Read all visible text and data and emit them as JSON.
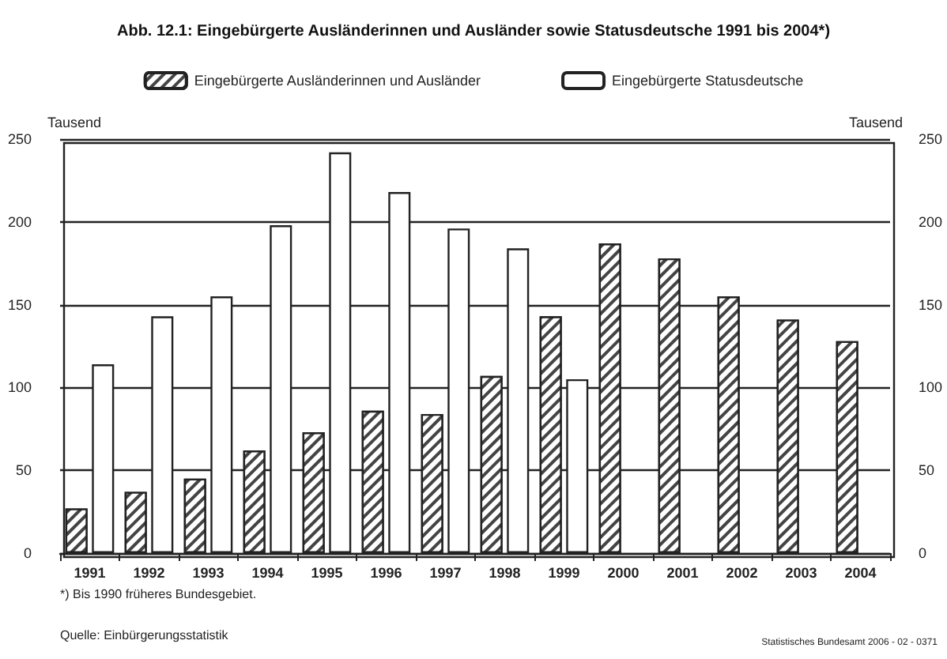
{
  "chart_data": {
    "type": "bar",
    "title": "Abb. 12.1: Eingebürgerte Ausländerinnen und Ausländer sowie Statusdeutsche 1991 bis 2004*)",
    "categories": [
      "1991",
      "1992",
      "1993",
      "1994",
      "1995",
      "1996",
      "1997",
      "1998",
      "1999",
      "2000",
      "2001",
      "2002",
      "2003",
      "2004"
    ],
    "series": [
      {
        "name": "Eingebürgerte Ausländerinnen und Ausländer",
        "color": "#444444",
        "values": [
          27,
          37,
          45,
          62,
          73,
          86,
          84,
          107,
          143,
          187,
          178,
          155,
          141,
          128
        ]
      },
      {
        "name": "Eingebürgerte Statusdeutsche",
        "color": "#ffffff",
        "values": [
          114,
          143,
          155,
          198,
          242,
          218,
          196,
          184,
          105,
          null,
          null,
          null,
          null,
          null
        ]
      }
    ],
    "ylabel": "Tausend",
    "y2label": "Tausend",
    "ylim": [
      0,
      250
    ],
    "yticks": [
      0,
      50,
      100,
      150,
      200,
      250
    ],
    "y2lim": [
      0,
      250
    ],
    "y2ticks": [
      0,
      50,
      100,
      150,
      200,
      250
    ],
    "grid": "y",
    "legend": "top",
    "annotations": [
      "*) Bis 1990 früheres Bundesgebiet.",
      "Quelle: Einbürgerungsstatistik",
      "Statistisches Bundesamt 2006 - 02 - 0371"
    ]
  }
}
